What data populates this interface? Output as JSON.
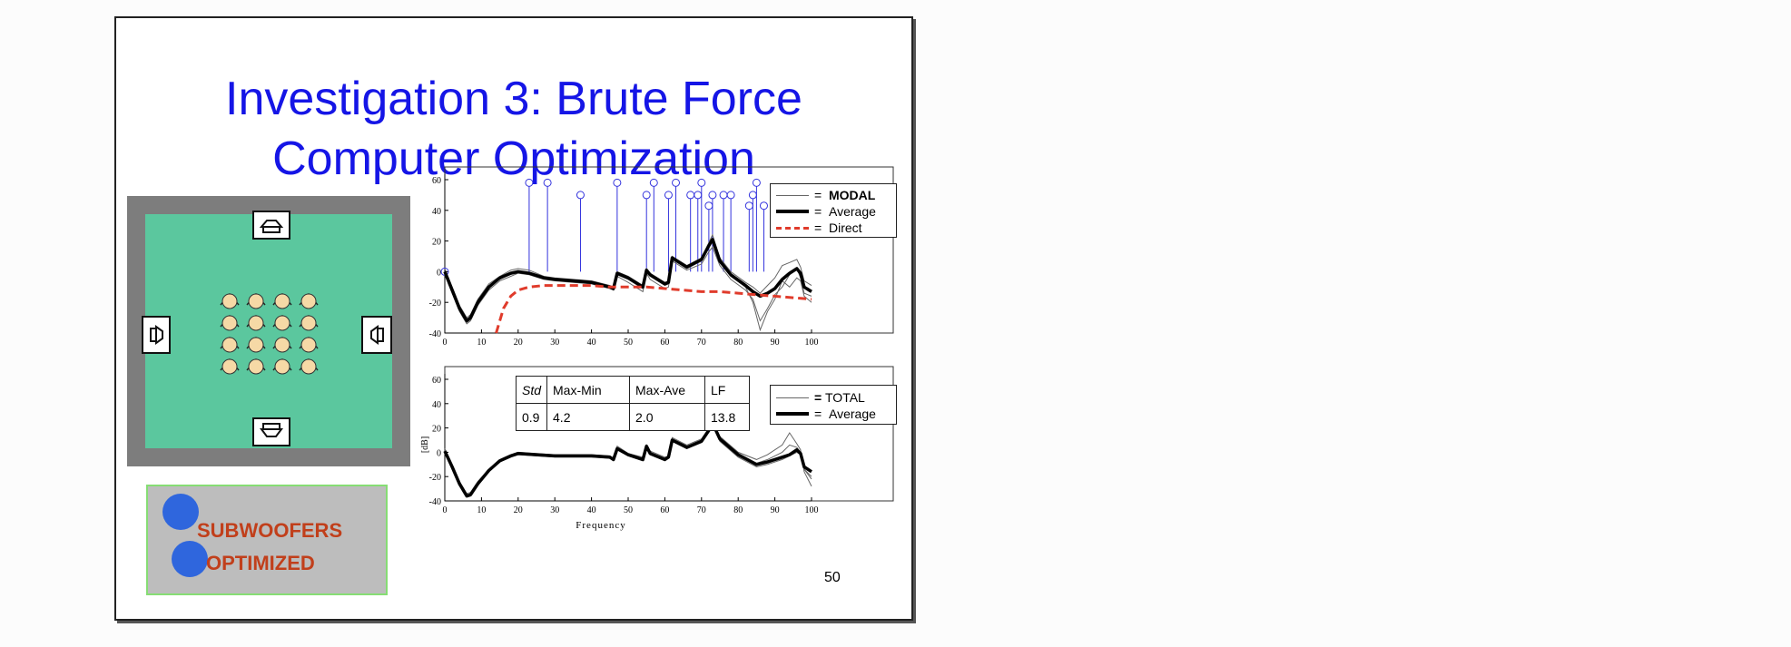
{
  "slide": {
    "title_line1": "Investigation 3: Brute Force",
    "title_line2": "Computer Optimization",
    "page_number": "50"
  },
  "subwoofer_panel": {
    "line1": "SUBWOOFERS",
    "line2": "OPTIMIZED"
  },
  "stats_table": {
    "headers": [
      "Std",
      "Max-Min",
      "Max-Ave",
      "LF"
    ],
    "values": [
      "0.9",
      "4.2",
      "2.0",
      "13.8"
    ]
  },
  "legend_top": [
    {
      "eq": "=",
      "label": "MODAL"
    },
    {
      "eq": "=",
      "label": "Average"
    },
    {
      "eq": "=",
      "label": "Direct"
    }
  ],
  "legend_bottom": [
    {
      "eq": "=",
      "label": "TOTAL"
    },
    {
      "eq": "=",
      "label": "Average"
    }
  ],
  "colors": {
    "title": "#1515e6",
    "room_floor": "#5bc79e",
    "room_wall": "#7d7d7d",
    "modes": "#3333dd",
    "direct": "#e03b2b",
    "subwoofer_text": "#c13f1b",
    "blue_dots": "#2f66dd"
  },
  "chart_data": [
    {
      "type": "line",
      "xlim": [
        0,
        100
      ],
      "ylim": [
        -40,
        60
      ],
      "x_ticks": [
        0,
        10,
        20,
        30,
        40,
        50,
        60,
        70,
        80,
        90,
        100
      ],
      "y_ticks": [
        -40,
        -20,
        0,
        20,
        40,
        60
      ],
      "x_tick_labels": [
        "0",
        "10",
        "20",
        "30",
        "40",
        "50",
        "60",
        "70",
        "80",
        "90",
        "100"
      ],
      "y_tick_labels": [
        "-40",
        "-20",
        "0",
        "20",
        "40",
        "60"
      ],
      "modes": [
        {
          "x": 0,
          "y": 0
        },
        {
          "x": 23,
          "y": 58
        },
        {
          "x": 28,
          "y": 58
        },
        {
          "x": 37,
          "y": 50
        },
        {
          "x": 47,
          "y": 58
        },
        {
          "x": 55,
          "y": 50
        },
        {
          "x": 57,
          "y": 58
        },
        {
          "x": 61,
          "y": 50
        },
        {
          "x": 63,
          "y": 58
        },
        {
          "x": 67,
          "y": 50
        },
        {
          "x": 69,
          "y": 50
        },
        {
          "x": 70,
          "y": 58
        },
        {
          "x": 72,
          "y": 43
        },
        {
          "x": 73,
          "y": 50
        },
        {
          "x": 76,
          "y": 50
        },
        {
          "x": 78,
          "y": 50
        },
        {
          "x": 83,
          "y": 43
        },
        {
          "x": 84,
          "y": 50
        },
        {
          "x": 85,
          "y": 58
        },
        {
          "x": 87,
          "y": 43
        }
      ],
      "series": [
        {
          "style": "modal",
          "x": [
            0,
            2,
            4,
            6,
            7,
            9,
            12,
            15,
            18,
            20,
            23,
            27,
            30,
            35,
            40,
            45,
            46,
            47,
            50,
            54,
            55,
            56,
            60,
            61,
            62,
            66,
            70,
            72,
            73,
            75,
            78,
            82,
            84,
            86,
            88,
            90,
            92,
            94,
            96,
            97,
            98,
            100
          ],
          "y": [
            -2,
            -14,
            -26,
            -34,
            -32,
            -22,
            -12,
            -6,
            -3,
            -1,
            -2,
            -5,
            -6,
            -7,
            -8,
            -11,
            -12,
            -3,
            -7,
            -13,
            -1,
            -5,
            -11,
            -10,
            7,
            1,
            5,
            13,
            16,
            4,
            -5,
            -12,
            -18,
            -32,
            -24,
            -15,
            -10,
            -2,
            2,
            -4,
            -14,
            -16
          ]
        },
        {
          "style": "modal",
          "x": [
            0,
            2,
            4,
            6,
            7,
            9,
            12,
            15,
            18,
            20,
            23,
            27,
            30,
            35,
            40,
            45,
            46,
            47,
            50,
            54,
            55,
            56,
            60,
            61,
            62,
            66,
            70,
            72,
            73,
            75,
            78,
            82,
            84,
            86,
            88,
            90,
            92,
            94,
            96,
            97,
            98,
            100
          ],
          "y": [
            2,
            -10,
            -22,
            -30,
            -28,
            -18,
            -8,
            -3,
            1,
            2,
            1,
            -3,
            -4,
            -5,
            -6,
            -9,
            -10,
            0,
            -3,
            -9,
            2,
            -1,
            -7,
            -6,
            10,
            4,
            9,
            19,
            24,
            9,
            0,
            -7,
            -10,
            -14,
            -9,
            -4,
            4,
            6,
            8,
            3,
            -6,
            -9
          ]
        },
        {
          "style": "modal",
          "x": [
            0,
            2,
            4,
            6,
            7,
            9,
            12,
            15,
            18,
            20,
            23,
            27,
            30,
            35,
            40,
            45,
            46,
            47,
            50,
            54,
            55,
            56,
            60,
            61,
            62,
            66,
            70,
            72,
            73,
            75,
            78,
            82,
            84,
            86,
            88,
            90,
            92,
            94,
            96,
            97,
            98,
            100
          ],
          "y": [
            -1,
            -13,
            -25,
            -33,
            -31,
            -20,
            -10,
            -5,
            -1,
            0,
            -1,
            -4,
            -5,
            -6,
            -7,
            -10,
            -12,
            -2,
            -5,
            -11,
            0,
            -3,
            -9,
            -8,
            8,
            2,
            7,
            16,
            20,
            6,
            -3,
            -10,
            -20,
            -38,
            -26,
            -18,
            -6,
            -10,
            -4,
            -6,
            -16,
            -20
          ]
        },
        {
          "style": "average",
          "x": [
            0,
            2,
            4,
            6,
            7,
            9,
            12,
            15,
            18,
            20,
            23,
            27,
            30,
            35,
            40,
            45,
            46,
            47,
            50,
            54,
            55,
            56,
            60,
            61,
            62,
            66,
            70,
            72,
            73,
            75,
            78,
            82,
            84,
            86,
            88,
            90,
            92,
            94,
            96,
            97,
            98,
            100
          ],
          "y": [
            0,
            -12,
            -24,
            -32,
            -30,
            -20,
            -10,
            -4,
            -1,
            0,
            -1,
            -4,
            -5,
            -6,
            -7,
            -10,
            -11,
            -1,
            -4,
            -10,
            1,
            -2,
            -8,
            -7,
            9,
            3,
            8,
            17,
            21,
            7,
            -2,
            -9,
            -13,
            -16,
            -14,
            -11,
            -5,
            -1,
            2,
            -1,
            -10,
            -13
          ]
        },
        {
          "style": "direct",
          "x": [
            14,
            16,
            18,
            20,
            23,
            27,
            30,
            35,
            40,
            45,
            50,
            55,
            60,
            65,
            70,
            75,
            80,
            85,
            90,
            95,
            100
          ],
          "y": [
            -40,
            -24,
            -16,
            -12,
            -10,
            -9,
            -9,
            -9,
            -9,
            -10,
            -10,
            -10,
            -11,
            -12,
            -13,
            -13,
            -14,
            -15,
            -16,
            -17,
            -18
          ]
        }
      ]
    },
    {
      "type": "line",
      "xlabel": "Frequency",
      "ylabel": "[dB]",
      "xlim": [
        0,
        100
      ],
      "ylim": [
        -40,
        60
      ],
      "x_ticks": [
        0,
        10,
        20,
        30,
        40,
        50,
        60,
        70,
        80,
        90,
        100
      ],
      "y_ticks": [
        -40,
        -20,
        0,
        20,
        40,
        60
      ],
      "x_tick_labels": [
        "0",
        "10",
        "20",
        "30",
        "40",
        "50",
        "60",
        "70",
        "80",
        "90",
        "100"
      ],
      "y_tick_labels": [
        "-40",
        "-20",
        "0",
        "20",
        "40",
        "60"
      ],
      "series": [
        {
          "style": "total",
          "x": [
            0,
            2,
            4,
            6,
            7,
            9,
            12,
            15,
            18,
            20,
            25,
            30,
            35,
            40,
            45,
            46,
            47,
            50,
            54,
            55,
            56,
            60,
            61,
            62,
            66,
            70,
            72,
            73,
            75,
            80,
            85,
            88,
            92,
            94,
            96,
            97,
            98,
            100
          ],
          "y": [
            3,
            -10,
            -24,
            -34,
            -33,
            -24,
            -14,
            -6,
            -2,
            0,
            -1,
            -2,
            -2,
            -2,
            -3,
            -5,
            5,
            -1,
            -4,
            6,
            1,
            -4,
            -3,
            12,
            6,
            11,
            20,
            26,
            13,
            0,
            -6,
            -2,
            6,
            16,
            7,
            2,
            -16,
            -28
          ]
        },
        {
          "style": "total",
          "x": [
            0,
            2,
            4,
            6,
            7,
            9,
            12,
            15,
            18,
            20,
            25,
            30,
            35,
            40,
            45,
            46,
            47,
            50,
            54,
            55,
            56,
            60,
            61,
            62,
            66,
            70,
            72,
            73,
            75,
            80,
            85,
            88,
            92,
            94,
            96,
            97,
            98,
            100
          ],
          "y": [
            0,
            -13,
            -27,
            -37,
            -36,
            -27,
            -16,
            -8,
            -4,
            -2,
            -3,
            -4,
            -4,
            -4,
            -5,
            -7,
            2,
            -3,
            -7,
            4,
            -2,
            -7,
            -5,
            9,
            3,
            8,
            17,
            22,
            9,
            -4,
            -12,
            -10,
            -6,
            -3,
            0,
            -2,
            -14,
            -20
          ]
        },
        {
          "style": "total",
          "x": [
            0,
            2,
            4,
            6,
            7,
            9,
            12,
            15,
            18,
            20,
            25,
            30,
            35,
            40,
            45,
            46,
            47,
            50,
            54,
            55,
            56,
            60,
            61,
            62,
            66,
            70,
            72,
            73,
            75,
            80,
            85,
            88,
            92,
            94,
            96,
            97,
            98,
            100
          ],
          "y": [
            2,
            -11,
            -25,
            -35,
            -34,
            -25,
            -15,
            -7,
            -3,
            -1,
            -2,
            -3,
            -3,
            -3,
            -4,
            -6,
            3,
            -2,
            -5,
            5,
            -1,
            -5,
            -4,
            10,
            4,
            9,
            18,
            24,
            11,
            -2,
            -9,
            -6,
            0,
            6,
            4,
            0,
            -14,
            -22
          ]
        },
        {
          "style": "average",
          "x": [
            0,
            2,
            4,
            6,
            7,
            9,
            12,
            15,
            18,
            20,
            25,
            30,
            35,
            40,
            45,
            46,
            47,
            50,
            54,
            55,
            56,
            60,
            61,
            62,
            66,
            70,
            72,
            73,
            75,
            80,
            85,
            88,
            92,
            94,
            96,
            97,
            98,
            100
          ],
          "y": [
            1,
            -12,
            -26,
            -36,
            -35,
            -26,
            -15,
            -7,
            -3,
            -1,
            -2,
            -3,
            -3,
            -3,
            -4,
            -6,
            3,
            -2,
            -6,
            5,
            -1,
            -6,
            -4,
            10,
            4,
            9,
            18,
            24,
            11,
            -2,
            -10,
            -8,
            -4,
            -2,
            2,
            -1,
            -12,
            -16
          ]
        }
      ]
    }
  ]
}
